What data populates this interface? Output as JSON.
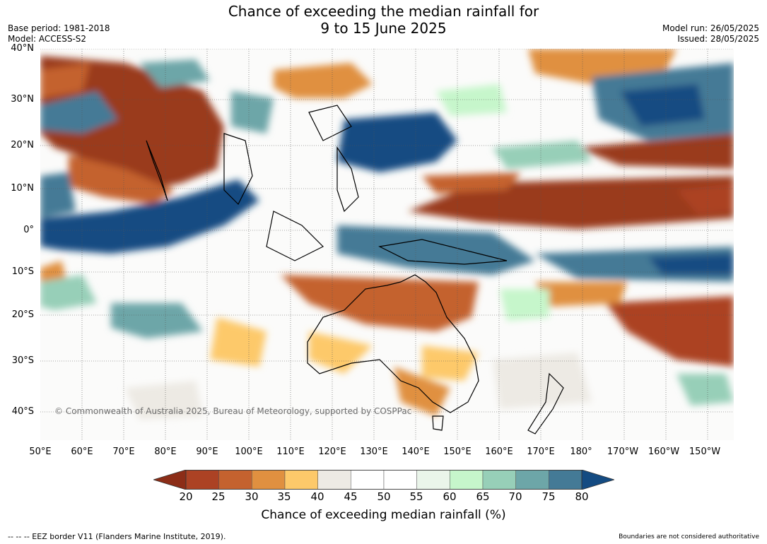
{
  "title": {
    "line1": "Chance of exceeding the median rainfall for",
    "line2": "9 to 15 June 2025"
  },
  "meta_left": {
    "base_period": "Base period: 1981-2018",
    "model": "Model: ACCESS-S2"
  },
  "meta_right": {
    "model_run": "Model run: 26/05/2025",
    "issued": "Issued: 28/05/2025"
  },
  "map": {
    "lat_labels": [
      "40°N",
      "30°N",
      "20°N",
      "10°N",
      "0°",
      "10°S",
      "20°S",
      "30°S",
      "40°S"
    ],
    "lon_labels": [
      "50°E",
      "60°E",
      "70°E",
      "80°E",
      "90°E",
      "100°E",
      "110°E",
      "120°E",
      "130°E",
      "140°E",
      "150°E",
      "160°E",
      "170°E",
      "180°",
      "170°W",
      "160°W",
      "150°W"
    ],
    "copyright": "© Commonwealth of Australia 2025, Bureau of Meteorology, supported by COSPPac"
  },
  "colorbar": {
    "ticks": [
      "20",
      "25",
      "30",
      "35",
      "40",
      "45",
      "50",
      "55",
      "60",
      "65",
      "70",
      "75",
      "80"
    ],
    "colors": [
      "#8c2d17",
      "#ac4224",
      "#c4622f",
      "#e09040",
      "#fdc96a",
      "#edeae4",
      "#ffffff",
      "#ffffff",
      "#eaf5ea",
      "#c6f6cb",
      "#97cfb8",
      "#6da6a8",
      "#447a96",
      "#144b82"
    ],
    "label": "Chance of exceeding median rainfall (%)"
  },
  "footer": {
    "eez": "--  --  -- EEZ border V11 (Flanders Marine Institute, 2019).",
    "boundaries": "Boundaries are not considered authoritative"
  }
}
